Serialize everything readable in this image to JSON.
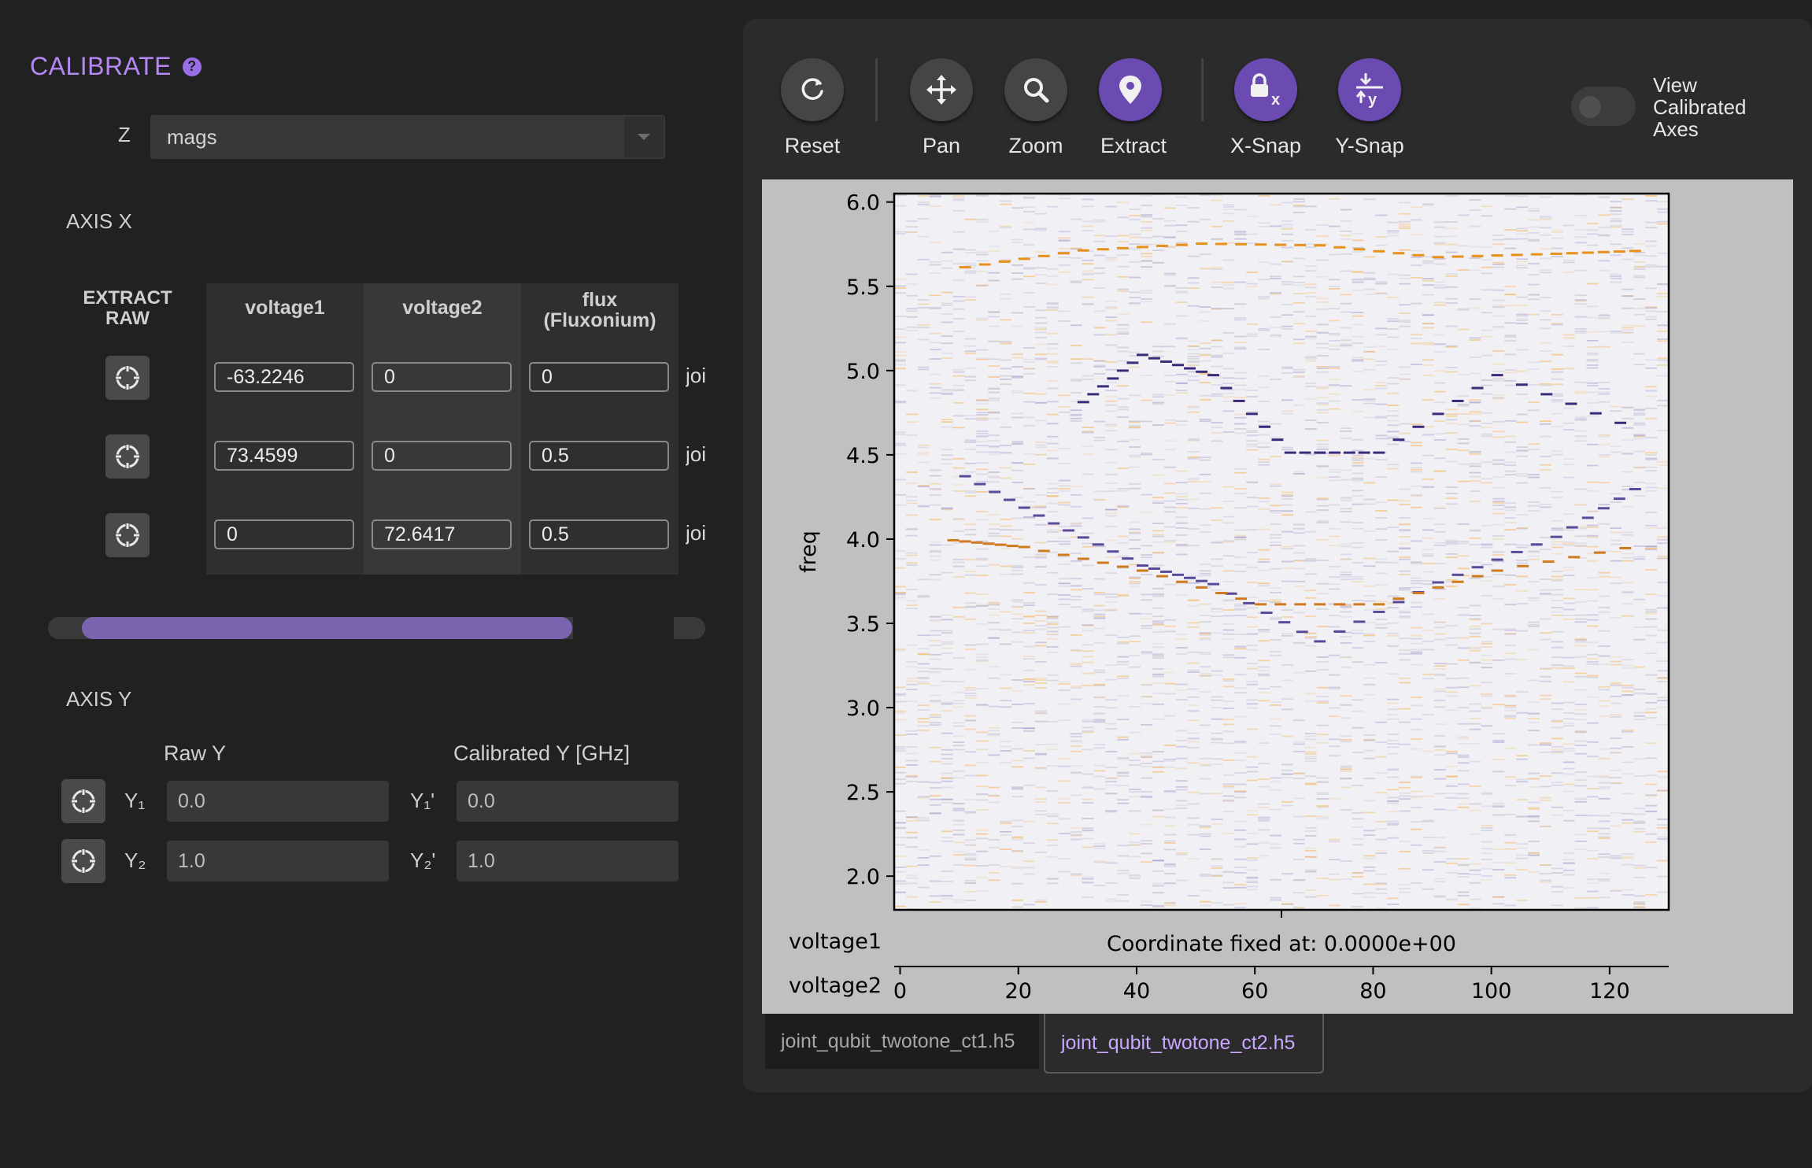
{
  "calibrate": {
    "title": "CALIBRATE",
    "help_glyph": "?",
    "z_label": "Z",
    "z_value": "mags",
    "axis_x_label": "AXIS X",
    "extract_raw_label": "EXTRACT\nRAW",
    "columns": [
      "voltage1",
      "voltage2",
      "flux\n(Fluxonium)"
    ],
    "rows": [
      [
        "-63.2246",
        "0",
        "0"
      ],
      [
        "73.4599",
        "0",
        "0.5"
      ],
      [
        "0",
        "72.6417",
        "0.5"
      ]
    ],
    "row_truncated_text": [
      "joi",
      "joi",
      "joi"
    ],
    "slider_fraction": 0.57,
    "axis_y_label": "AXIS Y",
    "raw_y_header": "Raw Y",
    "calibrated_y_header": "Calibrated Y [GHz]",
    "y_rows": [
      {
        "sym": "Y₁",
        "raw": "0.0",
        "sym_cal": "Y₁'",
        "cal": "0.0"
      },
      {
        "sym": "Y₂",
        "raw": "1.0",
        "sym_cal": "Y₂'",
        "cal": "1.0"
      }
    ]
  },
  "toolbar": {
    "buttons": [
      {
        "label": "Reset",
        "icon": "reset-icon"
      },
      {
        "label": "Pan",
        "icon": "pan-icon"
      },
      {
        "label": "Zoom",
        "icon": "zoom-icon"
      },
      {
        "label": "Extract",
        "icon": "pin-icon"
      },
      {
        "label": "X-Snap",
        "icon": "lock-x-icon"
      },
      {
        "label": "Y-Snap",
        "icon": "snap-y-icon"
      }
    ],
    "active_button": "Extract",
    "toggle_label": "View\nCalibrated\nAxes",
    "toggle_on": false
  },
  "tabs": {
    "items": [
      "joint_qubit_twotone_ct1.h5",
      "joint_qubit_twotone_ct2.h5"
    ],
    "active": "joint_qubit_twotone_ct2.h5"
  },
  "colors": {
    "accent": "#b488f2",
    "active_button": "#6b4bb2",
    "slider": "#7a64b0",
    "heat_orange": "#f5a623",
    "heat_purple": "#3d2a7a"
  },
  "chart_data": {
    "type": "heatmap",
    "ylabel": "freq",
    "ylim": [
      1.8,
      6.05
    ],
    "yticks": [
      2.0,
      2.5,
      3.0,
      3.5,
      4.0,
      4.5,
      5.0,
      5.5,
      6.0
    ],
    "xlabel_primary": "voltage1",
    "x_annotation": "Coordinate fixed at: 0.0000e+00",
    "xlabel_secondary": "voltage2",
    "xlim": [
      -1,
      130
    ],
    "xticks": [
      0,
      20,
      40,
      60,
      80,
      100,
      120
    ],
    "colormap": "purple-white-orange (diverging)",
    "visible_features": [
      {
        "desc": "orange arc",
        "points": [
          [
            10,
            5.62
          ],
          [
            30,
            5.72
          ],
          [
            50,
            5.76
          ],
          [
            70,
            5.75
          ],
          [
            90,
            5.68
          ],
          [
            110,
            5.7
          ],
          [
            126,
            5.72
          ]
        ]
      },
      {
        "desc": "purple arc",
        "points": [
          [
            30,
            4.82
          ],
          [
            40,
            5.1
          ],
          [
            52,
            4.98
          ],
          [
            65,
            4.52
          ],
          [
            80,
            4.52
          ],
          [
            100,
            4.98
          ],
          [
            125,
            4.64
          ]
        ]
      },
      {
        "desc": "lower purple arc",
        "points": [
          [
            10,
            4.38
          ],
          [
            25,
            4.1
          ],
          [
            40,
            3.85
          ],
          [
            52,
            3.74
          ],
          [
            70,
            3.4
          ],
          [
            90,
            3.75
          ],
          [
            110,
            4.02
          ],
          [
            126,
            4.36
          ]
        ]
      },
      {
        "desc": "orange low arc",
        "points": [
          [
            8,
            4.0
          ],
          [
            20,
            3.96
          ],
          [
            40,
            3.82
          ],
          [
            60,
            3.62
          ],
          [
            80,
            3.62
          ],
          [
            100,
            3.82
          ],
          [
            126,
            3.98
          ]
        ]
      }
    ]
  }
}
